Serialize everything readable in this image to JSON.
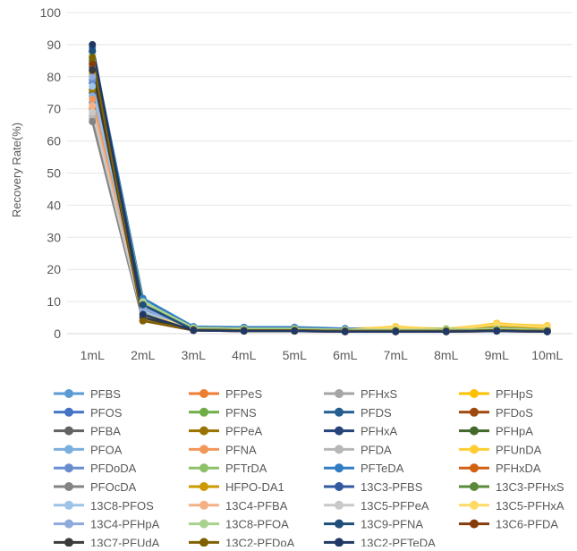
{
  "chart_data": {
    "type": "line",
    "title": "",
    "xlabel": "",
    "ylabel": "Recovery Rate(%)",
    "ylim": [
      0,
      100
    ],
    "yticks": [
      0,
      10,
      20,
      30,
      40,
      50,
      60,
      70,
      80,
      90,
      100
    ],
    "grid": true,
    "legend_position": "bottom",
    "categories": [
      "1mL",
      "2mL",
      "3mL",
      "4mL",
      "5mL",
      "6mL",
      "7mL",
      "8mL",
      "9mL",
      "10mL"
    ],
    "series": [
      {
        "name": "PFBS",
        "color": "#5B9BD5",
        "values": [
          72,
          8,
          1.5,
          1.2,
          1.2,
          1.0,
          0.8,
          0.8,
          1.0,
          0.8
        ]
      },
      {
        "name": "PFPeS",
        "color": "#ED7D31",
        "values": [
          70,
          6,
          1.2,
          1.0,
          1.0,
          0.8,
          0.8,
          0.8,
          1.0,
          0.8
        ]
      },
      {
        "name": "PFHxS",
        "color": "#A5A5A5",
        "values": [
          67,
          5,
          1.5,
          1.2,
          1.2,
          1.0,
          1.0,
          1.0,
          1.2,
          1.0
        ]
      },
      {
        "name": "PFHpS",
        "color": "#FFC000",
        "values": [
          80,
          6,
          1.5,
          1.2,
          1.2,
          1.2,
          2.2,
          1.2,
          3.2,
          2.2
        ]
      },
      {
        "name": "PFOS",
        "color": "#4472C4",
        "values": [
          78,
          7,
          1.2,
          1.0,
          1.0,
          0.8,
          0.8,
          0.8,
          1.0,
          0.8
        ]
      },
      {
        "name": "PFNS",
        "color": "#70AD47",
        "values": [
          82,
          9,
          1.5,
          1.2,
          1.2,
          1.0,
          1.0,
          1.0,
          1.2,
          1.0
        ]
      },
      {
        "name": "PFDS",
        "color": "#255E91",
        "values": [
          85,
          8,
          1.2,
          1.0,
          1.0,
          0.8,
          0.8,
          0.8,
          1.0,
          0.8
        ]
      },
      {
        "name": "PFDoS",
        "color": "#9E480E",
        "values": [
          84,
          5,
          1.0,
          0.8,
          0.8,
          0.6,
          0.6,
          0.6,
          0.8,
          0.6
        ]
      },
      {
        "name": "PFBA",
        "color": "#636363",
        "values": [
          75,
          6,
          1.8,
          1.5,
          1.5,
          1.2,
          1.2,
          1.2,
          1.5,
          1.2
        ]
      },
      {
        "name": "PFPeA",
        "color": "#997300",
        "values": [
          76,
          5,
          1.5,
          1.2,
          1.2,
          1.0,
          1.0,
          1.0,
          1.2,
          1.0
        ]
      },
      {
        "name": "PFHxA",
        "color": "#264478",
        "values": [
          88,
          7,
          1.2,
          1.0,
          1.0,
          0.8,
          0.8,
          0.8,
          1.0,
          0.8
        ]
      },
      {
        "name": "PFHpA",
        "color": "#43682B",
        "values": [
          87,
          9,
          1.5,
          1.2,
          1.2,
          1.0,
          1.0,
          1.0,
          1.2,
          1.0
        ]
      },
      {
        "name": "PFOA",
        "color": "#7CAFDD",
        "values": [
          74,
          7,
          1.5,
          1.2,
          1.2,
          1.0,
          1.0,
          1.0,
          1.2,
          1.0
        ]
      },
      {
        "name": "PFNA",
        "color": "#F1975A",
        "values": [
          73,
          6,
          1.2,
          1.0,
          1.0,
          0.8,
          0.8,
          0.8,
          1.0,
          0.8
        ]
      },
      {
        "name": "PFDA",
        "color": "#B7B7B7",
        "values": [
          68,
          5,
          1.5,
          1.2,
          1.2,
          1.0,
          1.0,
          1.0,
          1.2,
          1.0
        ]
      },
      {
        "name": "PFUnDA",
        "color": "#FFCD33",
        "values": [
          82,
          6,
          2.0,
          1.8,
          1.8,
          1.5,
          2.0,
          1.5,
          3.0,
          2.5
        ]
      },
      {
        "name": "PFDoDA",
        "color": "#698ED0",
        "values": [
          79,
          7,
          1.5,
          1.2,
          1.2,
          1.0,
          1.0,
          1.0,
          1.2,
          1.0
        ]
      },
      {
        "name": "PFTrDA",
        "color": "#8CC168",
        "values": [
          86,
          10,
          2.0,
          1.8,
          1.8,
          1.5,
          1.5,
          1.5,
          2.0,
          1.5
        ]
      },
      {
        "name": "PFTeDA",
        "color": "#327DC2",
        "values": [
          89,
          11,
          2.2,
          2.0,
          2.0,
          1.6,
          1.2,
          1.2,
          1.6,
          1.2
        ]
      },
      {
        "name": "PFHxDA",
        "color": "#D26012",
        "values": [
          83,
          5,
          1.2,
          1.0,
          1.0,
          0.8,
          0.8,
          0.8,
          1.0,
          0.8
        ]
      },
      {
        "name": "PFOcDA",
        "color": "#848484",
        "values": [
          66,
          4,
          1.5,
          1.2,
          1.2,
          1.0,
          1.0,
          1.0,
          1.2,
          1.0
        ]
      },
      {
        "name": "HFPO-DA1",
        "color": "#CC9A00",
        "values": [
          81,
          5,
          1.5,
          1.2,
          1.2,
          1.0,
          1.5,
          1.2,
          2.5,
          1.8
        ]
      },
      {
        "name": "13C3-PFBS",
        "color": "#335AA1",
        "values": [
          83,
          8,
          1.2,
          1.0,
          1.0,
          0.8,
          0.8,
          0.8,
          1.0,
          0.8
        ]
      },
      {
        "name": "13C3-PFHxS",
        "color": "#5A8A39",
        "values": [
          85,
          9,
          1.5,
          1.2,
          1.2,
          1.0,
          1.0,
          1.0,
          1.2,
          1.0
        ]
      },
      {
        "name": "13C8-PFOS",
        "color": "#9DC3E6",
        "values": [
          77,
          7,
          1.5,
          1.2,
          1.2,
          1.0,
          1.0,
          1.0,
          1.2,
          1.0
        ]
      },
      {
        "name": "13C4-PFBA",
        "color": "#F4B183",
        "values": [
          71,
          5,
          1.2,
          1.0,
          1.0,
          0.8,
          0.8,
          0.8,
          1.0,
          0.8
        ]
      },
      {
        "name": "13C5-PFPeA",
        "color": "#C9C9C9",
        "values": [
          69,
          5,
          1.5,
          1.2,
          1.2,
          1.0,
          1.0,
          1.0,
          1.2,
          1.0
        ]
      },
      {
        "name": "13C5-PFHxA",
        "color": "#FFD966",
        "values": [
          84,
          6,
          1.8,
          1.5,
          1.5,
          1.2,
          1.8,
          1.2,
          2.8,
          2.0
        ]
      },
      {
        "name": "13C4-PFHpA",
        "color": "#8FAADC",
        "values": [
          80,
          8,
          1.5,
          1.2,
          1.2,
          1.0,
          1.0,
          1.0,
          1.2,
          1.0
        ]
      },
      {
        "name": "13C8-PFOA",
        "color": "#A9D18E",
        "values": [
          87,
          10,
          1.8,
          1.5,
          1.5,
          1.2,
          1.2,
          1.2,
          1.5,
          1.2
        ]
      },
      {
        "name": "13C9-PFNA",
        "color": "#1F4E79",
        "values": [
          88,
          9,
          1.2,
          1.0,
          1.0,
          0.8,
          0.8,
          0.8,
          1.0,
          0.8
        ]
      },
      {
        "name": "13C6-PFDA",
        "color": "#843C0C",
        "values": [
          84,
          4,
          1.0,
          0.8,
          0.8,
          0.6,
          0.6,
          0.6,
          0.8,
          0.6
        ]
      },
      {
        "name": "13C7-PFUdA",
        "color": "#3A3A3A",
        "values": [
          82,
          5,
          1.2,
          1.0,
          1.0,
          0.8,
          0.8,
          0.8,
          1.0,
          0.8
        ]
      },
      {
        "name": "13C2-PFDoA",
        "color": "#7F6000",
        "values": [
          86,
          4,
          1.2,
          1.0,
          1.0,
          0.8,
          0.8,
          0.8,
          1.0,
          0.8
        ]
      },
      {
        "name": "13C2-PFTeDA",
        "color": "#203864",
        "values": [
          90,
          6,
          1.0,
          0.8,
          0.8,
          0.6,
          0.6,
          0.6,
          0.8,
          0.6
        ]
      }
    ]
  }
}
